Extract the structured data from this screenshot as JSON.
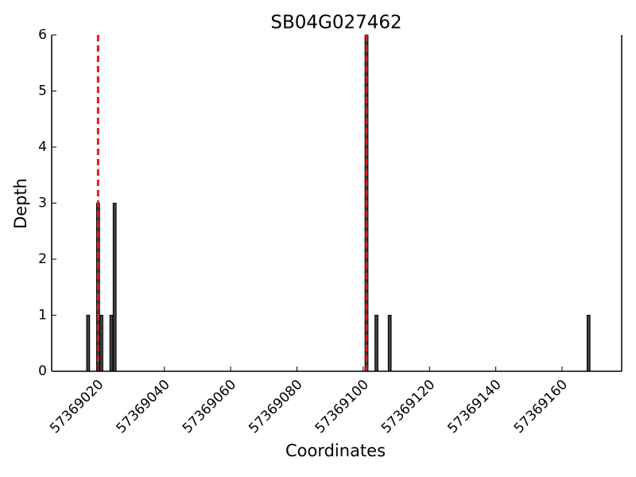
{
  "chart_data": {
    "type": "bar",
    "title": "SB04G027462",
    "xlabel": "Coordinates",
    "ylabel": "Depth",
    "x": [
      57369017,
      57369020,
      57369021,
      57369024,
      57369025,
      57369101,
      57369104,
      57369108,
      57369168
    ],
    "values": [
      1,
      3,
      1,
      1,
      3,
      6,
      1,
      1,
      1
    ],
    "color": "#404040",
    "vlines": [
      57369020,
      57369101
    ],
    "vline_color": "#e31a1c",
    "xlim": [
      57369006,
      57369178
    ],
    "xticks": [
      57369020,
      57369040,
      57369060,
      57369080,
      57369100,
      57369120,
      57369140,
      57369160
    ],
    "ylim": [
      0,
      6
    ],
    "yticks": [
      0,
      1,
      2,
      3,
      4,
      5,
      6
    ]
  }
}
